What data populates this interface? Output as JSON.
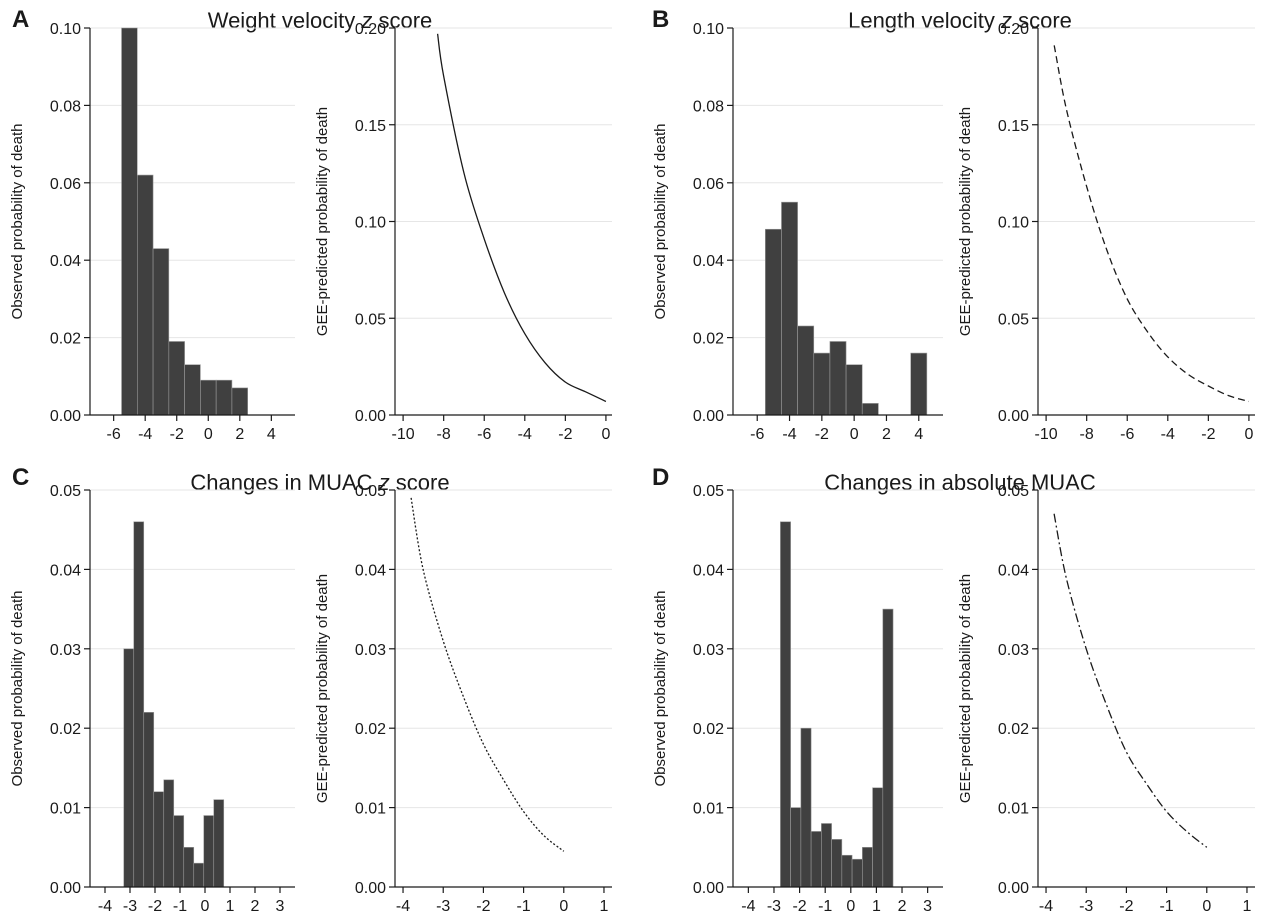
{
  "panels": [
    {
      "letter": "A",
      "title_pre": "Weight velocity ",
      "title_italic": "z",
      "title_post": " score"
    },
    {
      "letter": "B",
      "title_pre": "Length velocity ",
      "title_italic": "z",
      "title_post": " score"
    },
    {
      "letter": "C",
      "title_pre": "Changes in MUAC ",
      "title_italic": "z",
      "title_post": " score"
    },
    {
      "letter": "D",
      "title_pre": "Changes in absolute MUAC",
      "title_italic": "",
      "title_post": ""
    }
  ],
  "colors": {
    "bar": "#404040",
    "bar_separator": "#9a9a9a",
    "grid": "#e6e6e6",
    "axis": "#1a1a1a",
    "curve": "#1a1a1a"
  },
  "chart_data": [
    {
      "id": "A-observed",
      "type": "bar",
      "panel": "A",
      "ylabel": "Observed probability of death",
      "xlim": [
        -7.5,
        5.5
      ],
      "ylim": [
        0,
        0.1
      ],
      "xticks": [
        -6,
        -4,
        -2,
        0,
        2,
        4
      ],
      "xtick_labels": [
        "-6",
        "-4",
        "-2",
        "0",
        "2",
        "4"
      ],
      "yticks": [
        0,
        0.02,
        0.04,
        0.06,
        0.08,
        0.1
      ],
      "ytick_labels": [
        "0.00",
        "0.02",
        "0.04",
        "0.06",
        "0.08",
        "0.10"
      ],
      "bin_edges": [
        -5.5,
        -4.5,
        -3.5,
        -2.5,
        -1.5,
        -0.5,
        0.5,
        1.5,
        2.5
      ],
      "values": [
        0.1,
        0.062,
        0.043,
        0.019,
        0.013,
        0.009,
        0.009,
        0.007
      ],
      "grid": true
    },
    {
      "id": "A-predicted",
      "type": "line",
      "panel": "A",
      "ylabel": "GEE-predicted probability of death",
      "xlim": [
        -10.4,
        0.3
      ],
      "ylim": [
        0,
        0.2
      ],
      "xticks": [
        -10,
        -8,
        -6,
        -4,
        -2,
        0
      ],
      "xtick_labels": [
        "-10",
        "-8",
        "-6",
        "-4",
        "-2",
        "0"
      ],
      "yticks": [
        0,
        0.05,
        0.1,
        0.15,
        0.2
      ],
      "ytick_labels": [
        "0.00",
        "0.05",
        "0.10",
        "0.15",
        "0.20"
      ],
      "x": [
        -8.3,
        -8,
        -7,
        -6,
        -5,
        -4,
        -3,
        -2,
        -1,
        0
      ],
      "y": [
        0.197,
        0.175,
        0.125,
        0.091,
        0.063,
        0.042,
        0.027,
        0.017,
        0.012,
        0.007
      ],
      "line_style": "solid",
      "grid": true
    },
    {
      "id": "B-observed",
      "type": "bar",
      "panel": "B",
      "ylabel": "Observed probability of death",
      "xlim": [
        -7.5,
        5.5
      ],
      "ylim": [
        0,
        0.1
      ],
      "xticks": [
        -6,
        -4,
        -2,
        0,
        2,
        4
      ],
      "xtick_labels": [
        "-6",
        "-4",
        "-2",
        "0",
        "2",
        "4"
      ],
      "yticks": [
        0,
        0.02,
        0.04,
        0.06,
        0.08,
        0.1
      ],
      "ytick_labels": [
        "0.00",
        "0.02",
        "0.04",
        "0.06",
        "0.08",
        "0.10"
      ],
      "bin_edges": [
        -5.5,
        -4.5,
        -3.5,
        -2.5,
        -1.5,
        -0.5,
        0.5,
        1.5,
        2.5,
        3.5,
        4.5
      ],
      "values": [
        0.048,
        0.055,
        0.023,
        0.016,
        0.019,
        0.013,
        0.003,
        0,
        0,
        0.016
      ],
      "grid": true
    },
    {
      "id": "B-predicted",
      "type": "line",
      "panel": "B",
      "ylabel": "GEE-predicted probability of death",
      "xlim": [
        -10.4,
        0.3
      ],
      "ylim": [
        0,
        0.2
      ],
      "xticks": [
        -10,
        -8,
        -6,
        -4,
        -2,
        0
      ],
      "xtick_labels": [
        "-10",
        "-8",
        "-6",
        "-4",
        "-2",
        "0"
      ],
      "yticks": [
        0,
        0.05,
        0.1,
        0.15,
        0.2
      ],
      "ytick_labels": [
        "0.00",
        "0.05",
        "0.10",
        "0.15",
        "0.20"
      ],
      "x": [
        -9.6,
        -9,
        -8,
        -7,
        -6,
        -5,
        -4,
        -3,
        -2,
        -1,
        0
      ],
      "y": [
        0.191,
        0.158,
        0.118,
        0.085,
        0.06,
        0.043,
        0.03,
        0.021,
        0.015,
        0.01,
        0.007
      ],
      "line_style": "dashed",
      "grid": true
    },
    {
      "id": "C-observed",
      "type": "bar",
      "panel": "C",
      "ylabel": "Observed probability of death",
      "xlim": [
        -4.6,
        3.6
      ],
      "ylim": [
        0,
        0.05
      ],
      "xticks": [
        -4,
        -3,
        -2,
        -1,
        0,
        1,
        2,
        3
      ],
      "xtick_labels": [
        "-4",
        "-3",
        "-2",
        "-1",
        "0",
        "1",
        "2",
        "3"
      ],
      "yticks": [
        0,
        0.01,
        0.02,
        0.03,
        0.04,
        0.05
      ],
      "ytick_labels": [
        "0.00",
        "0.01",
        "0.02",
        "0.03",
        "0.04",
        "0.05"
      ],
      "bin_edges": [
        -3.25,
        -2.85,
        -2.45,
        -2.05,
        -1.65,
        -1.25,
        -0.85,
        -0.45,
        -0.05,
        0.35,
        0.75,
        1.15,
        1.55,
        1.95
      ],
      "values": [
        0.03,
        0.046,
        0.022,
        0.012,
        0.0135,
        0.009,
        0.005,
        0.003,
        0.009,
        0.011,
        0,
        0,
        0
      ],
      "grid": true
    },
    {
      "id": "C-predicted",
      "type": "line",
      "panel": "C",
      "ylabel": "GEE-predicted probability of death",
      "xlim": [
        -4.2,
        1.2
      ],
      "ylim": [
        0,
        0.05
      ],
      "xticks": [
        -4,
        -3,
        -2,
        -1,
        0,
        1
      ],
      "xtick_labels": [
        "-4",
        "-3",
        "-2",
        "-1",
        "0",
        "1"
      ],
      "yticks": [
        0,
        0.01,
        0.02,
        0.03,
        0.04,
        0.05
      ],
      "ytick_labels": [
        "0.00",
        "0.01",
        "0.02",
        "0.03",
        "0.04",
        "0.05"
      ],
      "x": [
        -3.8,
        -3.5,
        -3,
        -2.5,
        -2,
        -1.5,
        -1,
        -0.5,
        0
      ],
      "y": [
        0.049,
        0.04,
        0.031,
        0.024,
        0.018,
        0.0135,
        0.0095,
        0.0065,
        0.0045
      ],
      "line_style": "dotted",
      "grid": true
    },
    {
      "id": "D-observed",
      "type": "bar",
      "panel": "D",
      "ylabel": "Observed probability of death",
      "xlim": [
        -4.6,
        3.6
      ],
      "ylim": [
        0,
        0.05
      ],
      "xticks": [
        -4,
        -3,
        -2,
        -1,
        0,
        1,
        2,
        3
      ],
      "xtick_labels": [
        "-4",
        "-3",
        "-2",
        "-1",
        "0",
        "1",
        "2",
        "3"
      ],
      "yticks": [
        0,
        0.01,
        0.02,
        0.03,
        0.04,
        0.05
      ],
      "ytick_labels": [
        "0.00",
        "0.01",
        "0.02",
        "0.03",
        "0.04",
        "0.05"
      ],
      "bin_edges": [
        -2.75,
        -2.35,
        -1.95,
        -1.55,
        -1.15,
        -0.75,
        -0.35,
        0.05,
        0.45,
        0.85,
        1.25,
        1.65,
        2.05,
        2.45,
        2.85
      ],
      "values": [
        0.046,
        0.01,
        0.02,
        0.007,
        0.008,
        0.006,
        0.004,
        0.0035,
        0.005,
        0.0125,
        0.035,
        0,
        0,
        0
      ],
      "grid": true
    },
    {
      "id": "D-predicted",
      "type": "line",
      "panel": "D",
      "ylabel": "GEE-predicted probability of death",
      "xlim": [
        -4.2,
        1.2
      ],
      "ylim": [
        0,
        0.05
      ],
      "xticks": [
        -4,
        -3,
        -2,
        -1,
        0,
        1
      ],
      "xtick_labels": [
        "-4",
        "-3",
        "-2",
        "-1",
        "0",
        "1"
      ],
      "yticks": [
        0,
        0.01,
        0.02,
        0.03,
        0.04,
        0.05
      ],
      "ytick_labels": [
        "0.00",
        "0.01",
        "0.02",
        "0.03",
        "0.04",
        "0.05"
      ],
      "x": [
        -3.8,
        -3.5,
        -3,
        -2.5,
        -2,
        -1.5,
        -1,
        -0.5,
        0
      ],
      "y": [
        0.047,
        0.039,
        0.03,
        0.023,
        0.017,
        0.013,
        0.0095,
        0.007,
        0.005
      ],
      "line_style": "dash-dot",
      "grid": true
    }
  ]
}
